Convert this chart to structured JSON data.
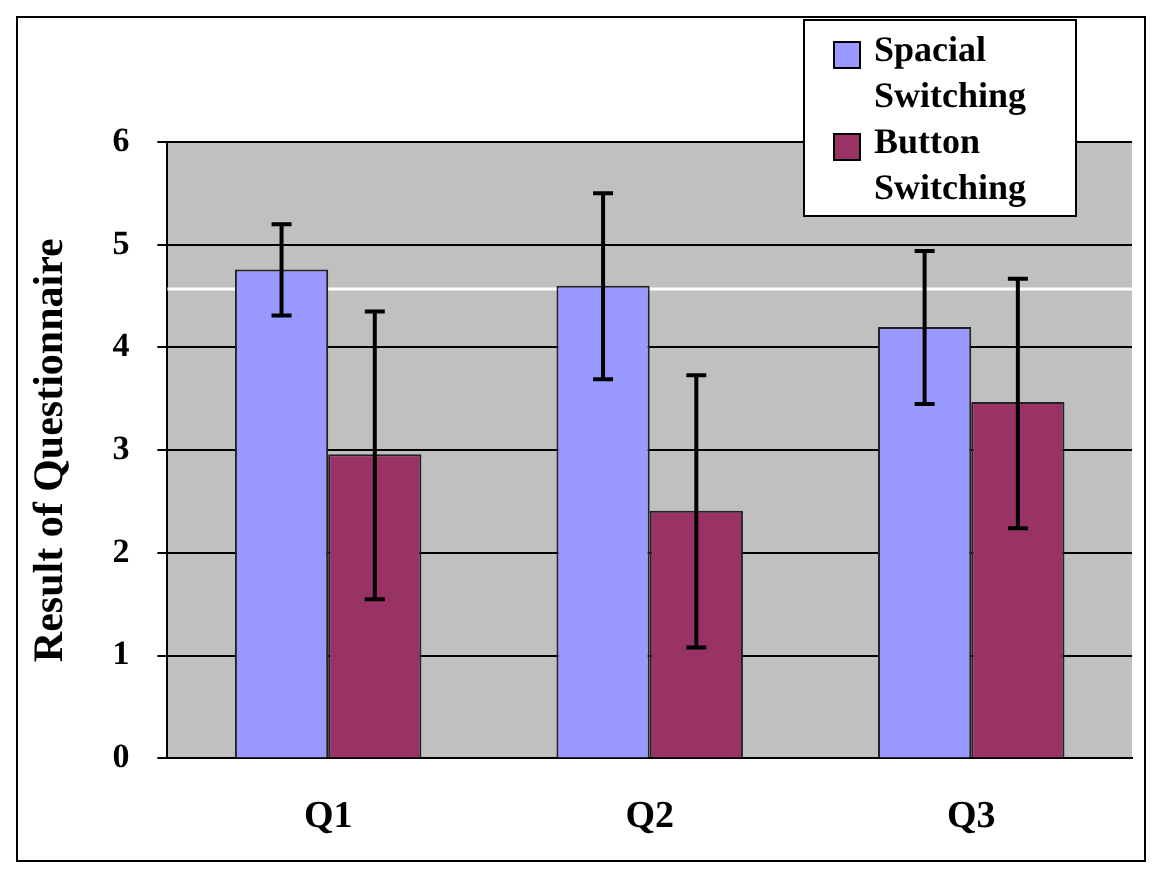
{
  "chart_data": {
    "type": "bar",
    "ylabel": "Result of Questionnaire",
    "categories": [
      "Q1",
      "Q2",
      "Q3"
    ],
    "series": [
      {
        "name": "Spacial Switching",
        "color": "#9999ff",
        "values": [
          4.76,
          4.6,
          4.2
        ],
        "errors": [
          [
            4.31,
            5.2
          ],
          [
            3.69,
            5.5
          ],
          [
            3.45,
            4.94
          ]
        ]
      },
      {
        "name": "Button Switching",
        "color": "#993366",
        "values": [
          2.96,
          2.41,
          3.47
        ],
        "errors": [
          [
            1.55,
            4.35
          ],
          [
            1.08,
            3.73
          ],
          [
            2.24,
            4.67
          ]
        ]
      }
    ],
    "ylim": [
      0,
      6
    ],
    "yticks": [
      0,
      1,
      2,
      3,
      4,
      5,
      6
    ],
    "grid": "y",
    "legend": "top right",
    "ref_lines": [
      {
        "axis": "y",
        "value": 4.57,
        "color": "#ffffff"
      }
    ]
  }
}
